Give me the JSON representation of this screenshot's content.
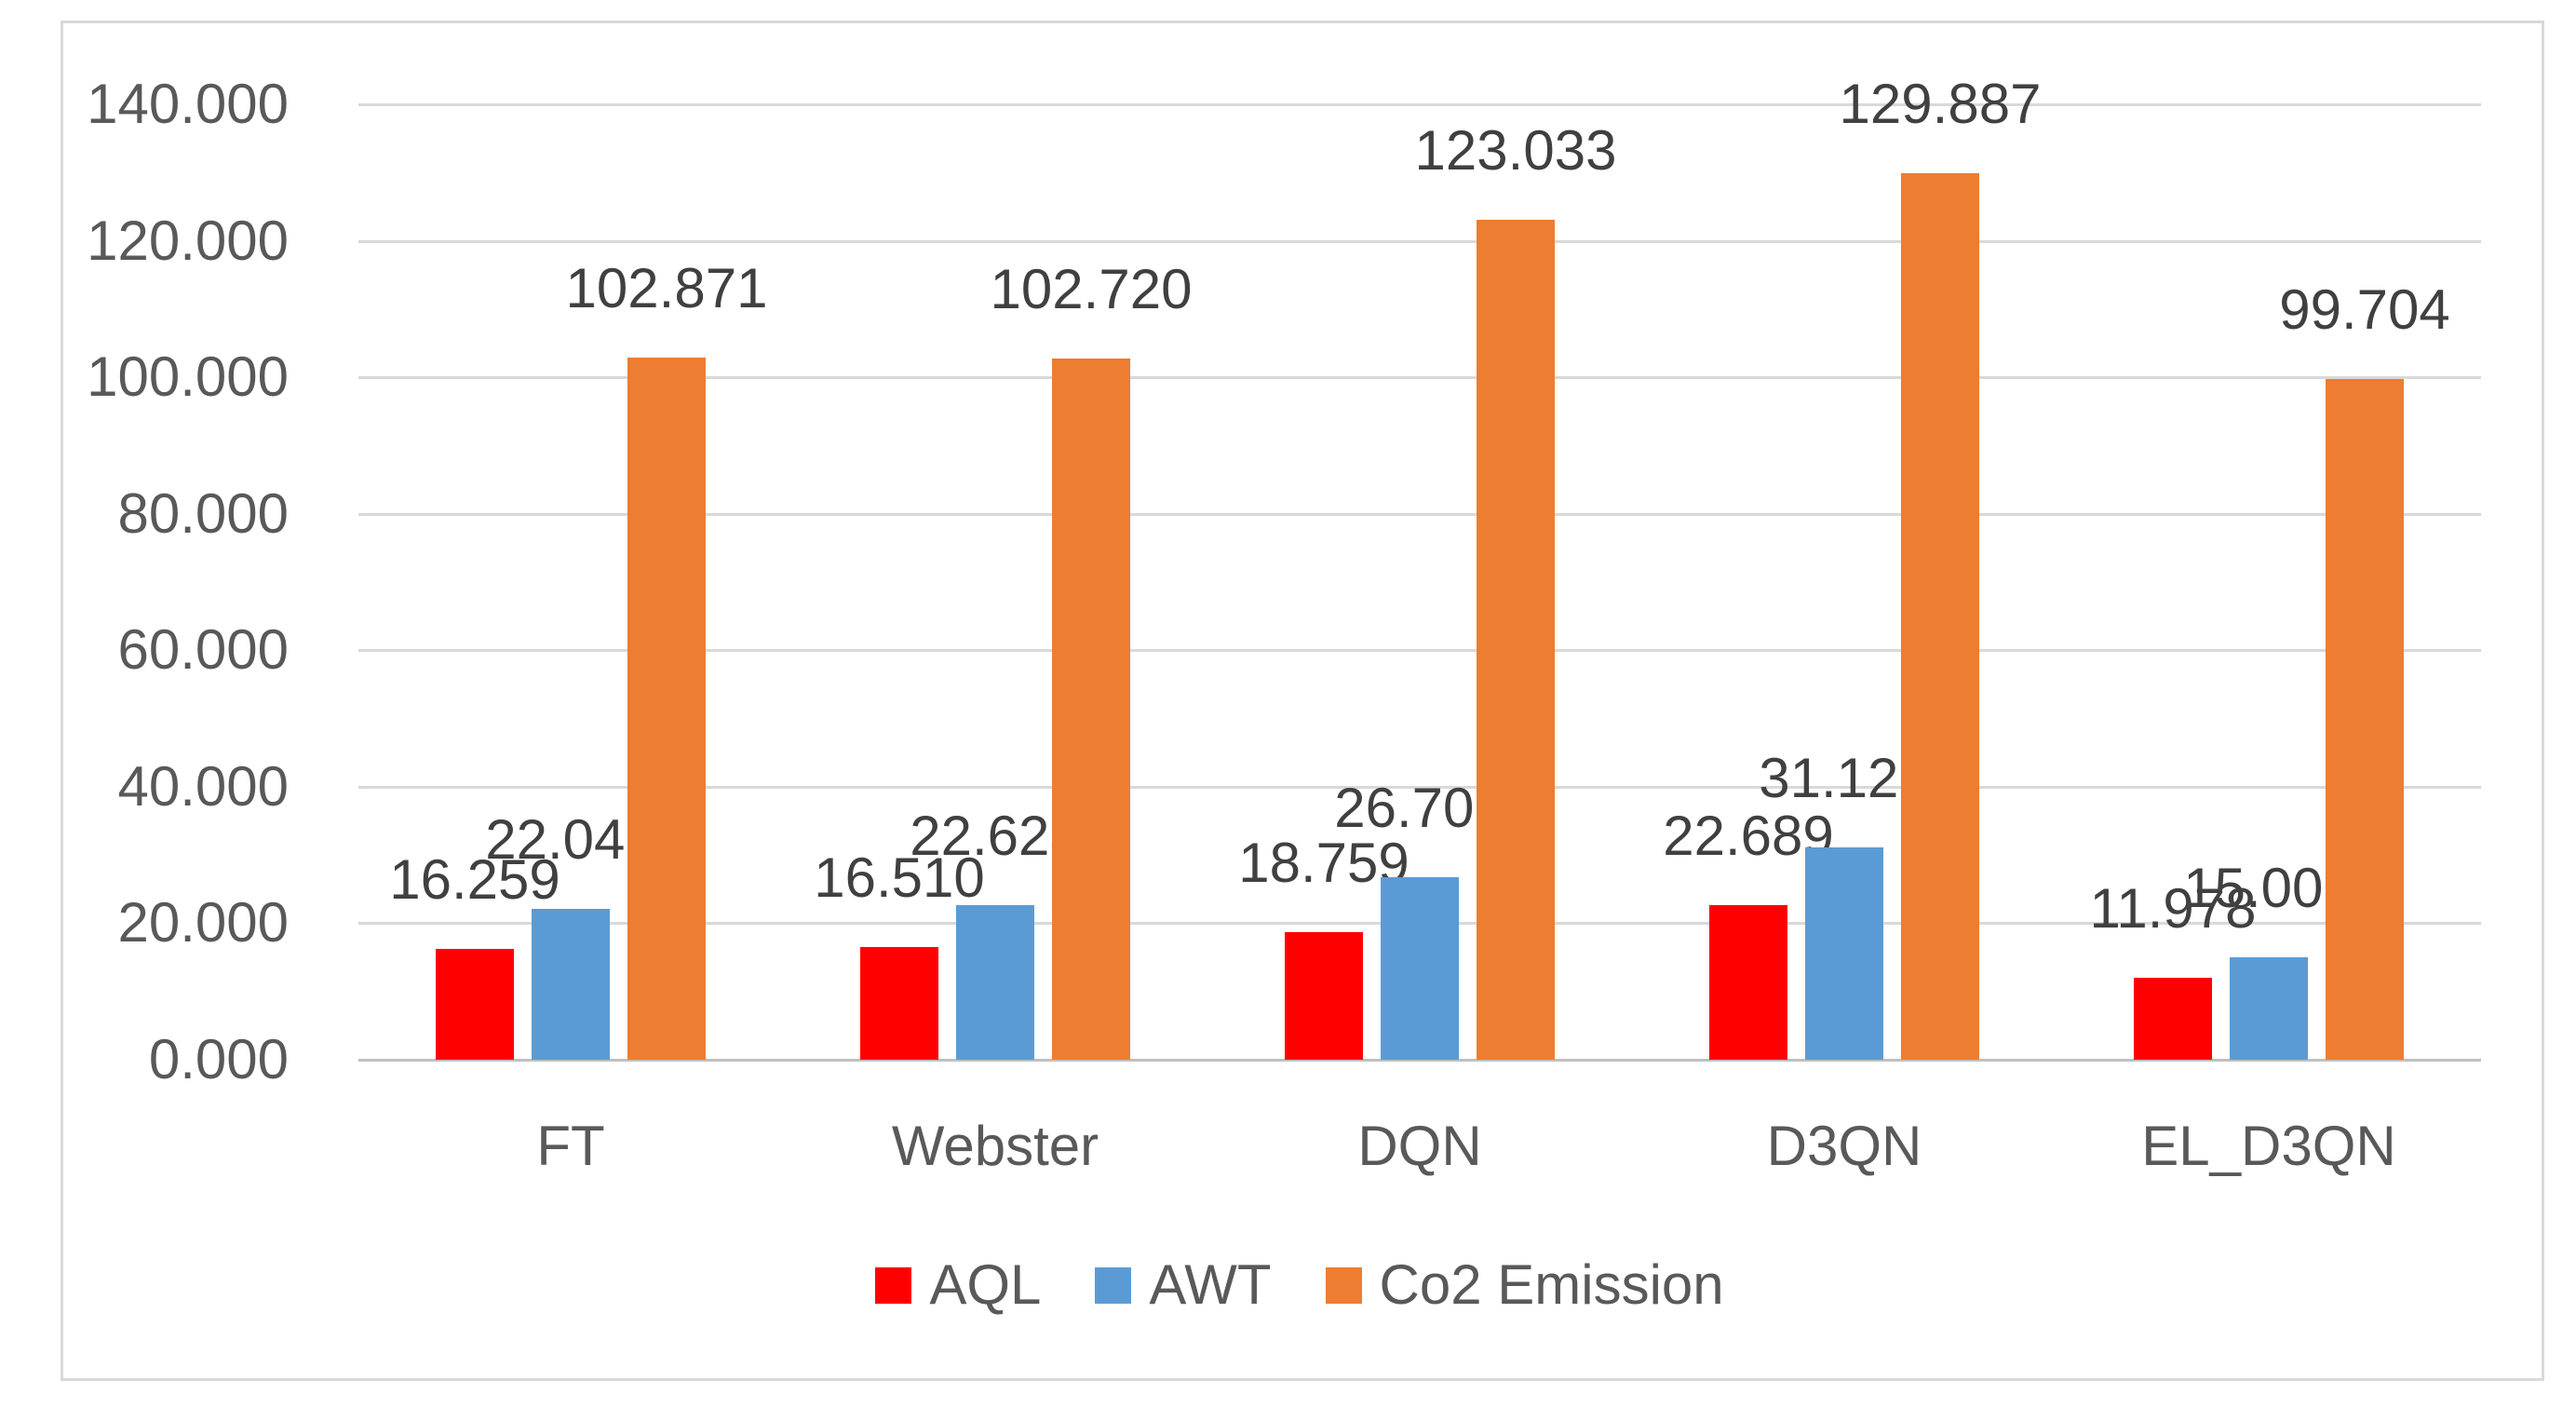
{
  "chart_data": {
    "type": "bar",
    "title": "",
    "categories": [
      "FT",
      "Webster",
      "DQN",
      "D3QN",
      "EL_D3QN"
    ],
    "series": [
      {
        "name": "AQL",
        "color": "#ff0000",
        "values": [
          16.259,
          16.51,
          18.759,
          22.689,
          11.978
        ],
        "labels": [
          "16.259",
          "16.510",
          "18.759",
          "22.689",
          "11.978"
        ]
      },
      {
        "name": "AWT",
        "color": "#5b9bd5",
        "values": [
          22.048,
          22.623,
          26.706,
          31.122,
          15.005
        ],
        "labels": [
          "22.048",
          "22.623",
          "26.706",
          "31.122",
          "15.005"
        ]
      },
      {
        "name": "Co2 Emission",
        "color": "#ed7d31",
        "values": [
          102.871,
          102.72,
          123.033,
          129.887,
          99.704
        ],
        "labels": [
          "102.871",
          "102.720",
          "123.033",
          "129.887",
          "99.704"
        ]
      }
    ],
    "y_axis": {
      "min": 0,
      "max": 140,
      "step": 20,
      "tick_labels": [
        "0.000",
        "20.000",
        "40.000",
        "60.000",
        "80.000",
        "100.000",
        "120.000",
        "140.000"
      ]
    },
    "x_axis": {
      "tick_labels": [
        "FT",
        "Webster",
        "DQN",
        "D3QN",
        "EL_D3QN"
      ]
    },
    "legend": {
      "position": "bottom",
      "entries": [
        "AQL",
        "AWT",
        "Co2 Emission"
      ]
    },
    "grid": true,
    "colors": {
      "gridline": "#d9d9d9",
      "axis_line": "#bfbfbf",
      "frame_border": "#d9d9d9",
      "tick_text": "#595959",
      "data_label_text": "#404040",
      "background": "#ffffff"
    }
  }
}
